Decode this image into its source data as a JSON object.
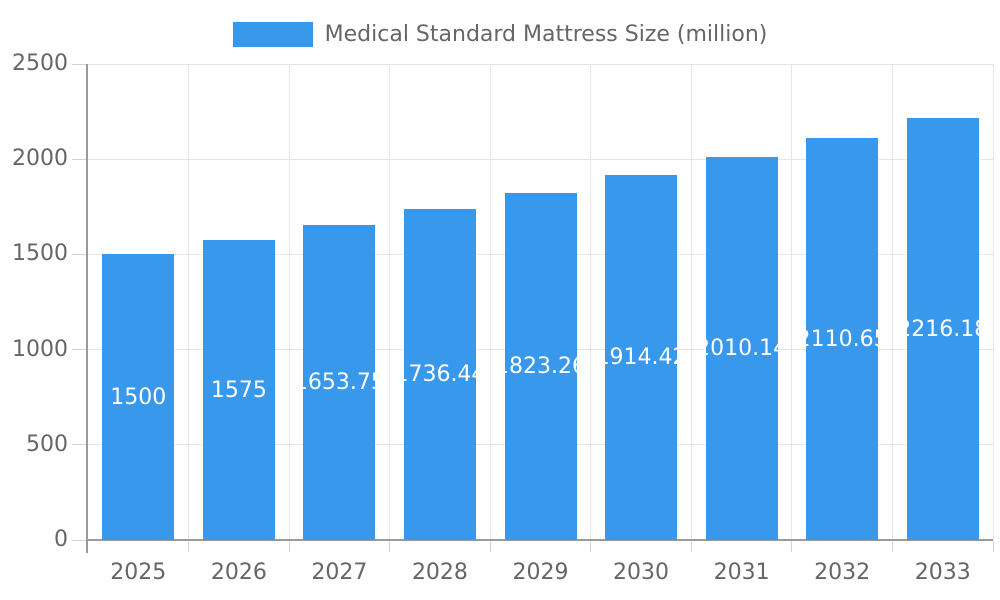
{
  "chart_data": {
    "type": "bar",
    "title": "Medical Standard Mattress Size (million)",
    "legend_entries": [
      "Medical Standard Mattress Size (million)"
    ],
    "legend_position": "top",
    "categories": [
      "2025",
      "2026",
      "2027",
      "2028",
      "2029",
      "2030",
      "2031",
      "2032",
      "2033"
    ],
    "series": [
      {
        "name": "Medical Standard Mattress Size (million)",
        "values": [
          1500,
          1575,
          1653.75,
          1736.44,
          1823.26,
          1914.42,
          2010.14,
          2110.65,
          2216.18
        ],
        "value_labels": [
          "1500",
          "1575",
          "1653.75",
          "1736.44",
          "1823.26",
          "1914.42",
          "2010.14",
          "2110.65",
          "2216.18"
        ]
      }
    ],
    "xlabel": "",
    "ylabel": "",
    "ylim": [
      0,
      2500
    ],
    "yticks": [
      0,
      500,
      1000,
      1500,
      2000,
      2500
    ],
    "ytick_labels": [
      "0",
      "500",
      "1000",
      "1500",
      "2000",
      "2500"
    ],
    "grid": true,
    "colors": {
      "bar": "#3898EC",
      "grid_line": "#E6E6E6",
      "tick_mark": "#D2D2D2",
      "axis_line": "#9A9A9A",
      "text": "#666666",
      "bar_label_text": "#FFFFFF",
      "background": "#FFFFFF"
    }
  }
}
